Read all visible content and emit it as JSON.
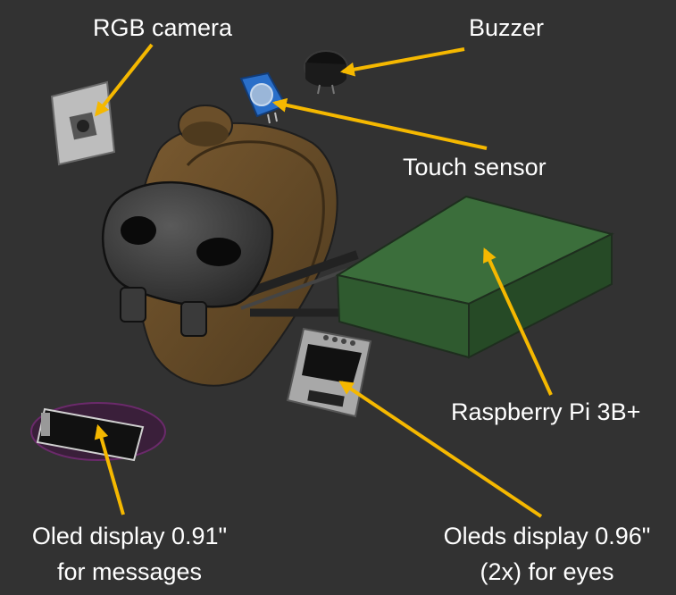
{
  "labels": {
    "rgb_camera": "RGB camera",
    "buzzer": "Buzzer",
    "touch_sensor": "Touch sensor",
    "raspberry_pi": "Raspberry Pi 3B+",
    "oled_small_line1": "Oled display 0.91\"",
    "oled_small_line2": "for messages",
    "oled_eyes_line1": "Oleds display 0.96\"",
    "oled_eyes_line2": "(2x) for eyes"
  },
  "colors": {
    "background": "#323232",
    "arrow": "#f5b800",
    "label_text": "#ffffff",
    "headband": "#6b4f2a",
    "pi_box": "#2f5a2f",
    "touch_sensor_board": "#2a6fc9",
    "mask": "#3a3a3a"
  }
}
